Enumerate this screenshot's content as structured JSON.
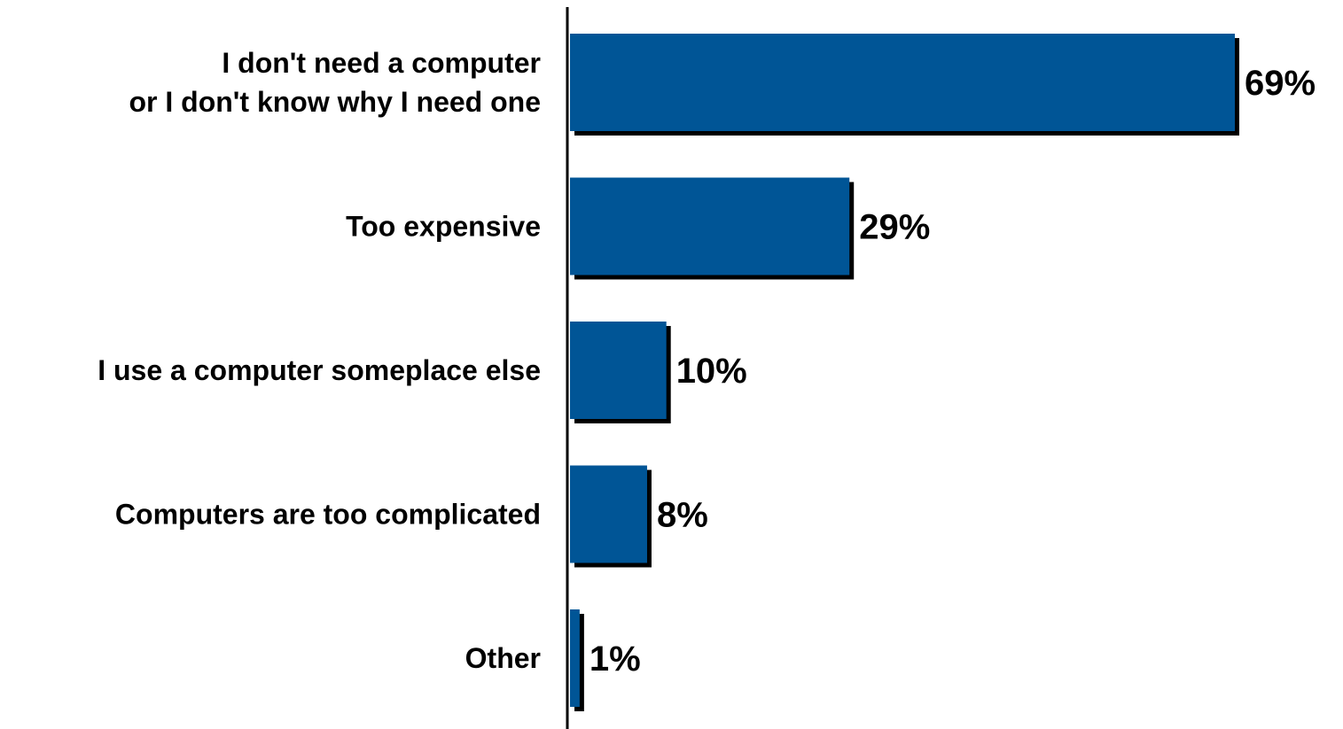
{
  "chart_data": {
    "type": "bar",
    "orientation": "horizontal",
    "categories": [
      [
        "I don't need a computer",
        "or I don't know why I need one"
      ],
      [
        "Too expensive"
      ],
      [
        "I use a computer someplace else"
      ],
      [
        "Computers are too complicated"
      ],
      [
        "Other"
      ]
    ],
    "values": [
      69,
      29,
      10,
      8,
      1
    ],
    "value_labels": [
      "69%",
      "29%",
      "10%",
      "8%",
      "1%"
    ],
    "unit": "%",
    "xlim": [
      0,
      69
    ],
    "grid": false,
    "legend": "none",
    "colors": {
      "bar": "#005596",
      "shadow": "#000000",
      "axis": "#000000",
      "text": "#000000"
    }
  }
}
